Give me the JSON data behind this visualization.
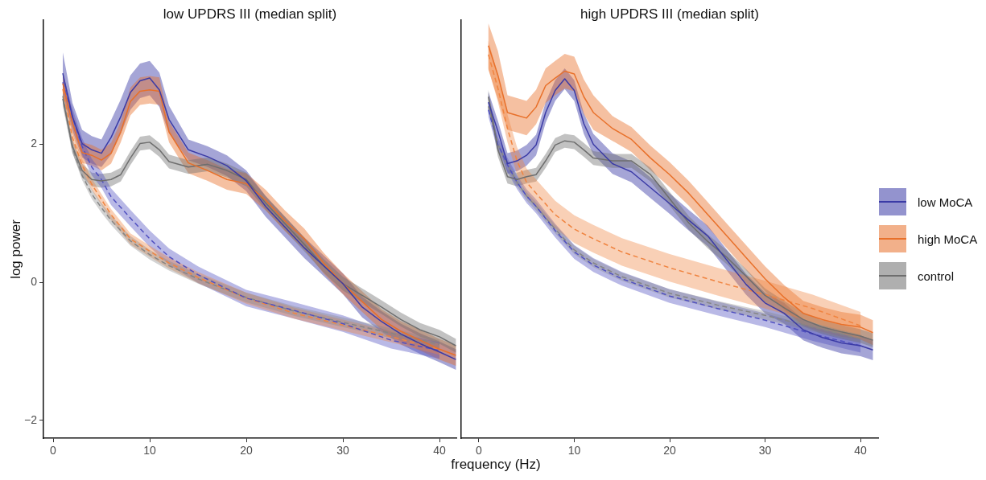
{
  "chart_data": [
    {
      "type": "line",
      "title": "low UPDRS III (median split)",
      "xlabel": "frequency (Hz)",
      "ylabel": "log power",
      "xlim": [
        -1,
        41.75
      ],
      "ylim": [
        -2.26,
        3.8
      ],
      "xticks": [
        0,
        10,
        20,
        30,
        40
      ],
      "yticks": [
        -2,
        0,
        2
      ],
      "grid": false,
      "marker": "none",
      "series": [
        {
          "color": "#3b3ba6",
          "x": [
            1,
            2,
            3,
            4,
            5,
            6,
            7,
            8,
            9,
            10,
            11,
            12,
            14,
            16,
            18,
            20,
            22,
            24,
            26,
            28,
            30,
            32,
            34,
            36,
            38,
            40,
            41.7
          ],
          "values": [
            3.03,
            2.4,
            2.01,
            1.92,
            1.87,
            2.1,
            2.4,
            2.75,
            2.92,
            2.96,
            2.79,
            2.36,
            1.92,
            1.82,
            1.69,
            1.47,
            1.1,
            0.8,
            0.5,
            0.24,
            -0.02,
            -0.36,
            -0.57,
            -0.75,
            -0.89,
            -1.01,
            -1.12
          ],
          "lower": [
            2.73,
            2.2,
            1.81,
            1.72,
            1.67,
            1.85,
            2.15,
            2.5,
            2.67,
            2.71,
            2.54,
            2.16,
            1.77,
            1.67,
            1.54,
            1.32,
            0.95,
            0.65,
            0.35,
            0.09,
            -0.17,
            -0.51,
            -0.72,
            -0.9,
            -1.04,
            -1.16,
            -1.27
          ],
          "upper": [
            3.33,
            2.6,
            2.21,
            2.12,
            2.07,
            2.35,
            2.65,
            3.0,
            3.17,
            3.21,
            3.04,
            2.56,
            2.07,
            1.97,
            1.84,
            1.62,
            1.25,
            0.95,
            0.65,
            0.39,
            0.13,
            -0.21,
            -0.42,
            -0.6,
            -0.74,
            -0.86,
            -0.97
          ],
          "line_style": "solid"
        },
        {
          "color": "#e8702a",
          "x": [
            1,
            2,
            3,
            4,
            5,
            6,
            7,
            8,
            9,
            10,
            11,
            12,
            14,
            16,
            18,
            20,
            22,
            24,
            26,
            28,
            30,
            32,
            34,
            36,
            38,
            40,
            41.7
          ],
          "values": [
            2.88,
            2.31,
            1.88,
            1.84,
            1.77,
            1.87,
            2.18,
            2.62,
            2.77,
            2.79,
            2.77,
            2.18,
            1.73,
            1.62,
            1.49,
            1.43,
            1.19,
            0.89,
            0.63,
            0.28,
            -0.02,
            -0.28,
            -0.54,
            -0.71,
            -0.84,
            -0.97,
            -1.06
          ],
          "lower": [
            2.73,
            2.16,
            1.73,
            1.69,
            1.62,
            1.72,
            2.03,
            2.42,
            2.57,
            2.59,
            2.57,
            2.03,
            1.58,
            1.47,
            1.34,
            1.28,
            1.04,
            0.74,
            0.48,
            0.13,
            -0.17,
            -0.43,
            -0.69,
            -0.86,
            -0.99,
            -1.12,
            -1.21
          ],
          "upper": [
            3.03,
            2.46,
            2.03,
            1.99,
            1.92,
            2.02,
            2.33,
            2.82,
            2.97,
            2.99,
            2.97,
            2.33,
            1.88,
            1.77,
            1.64,
            1.58,
            1.34,
            1.04,
            0.78,
            0.43,
            0.13,
            -0.13,
            -0.39,
            -0.56,
            -0.69,
            -0.82,
            -0.91
          ],
          "line_style": "solid"
        },
        {
          "color": "#6e6e6e",
          "x": [
            1,
            2,
            3,
            4,
            5,
            6,
            7,
            8,
            9,
            10,
            11,
            12,
            14,
            16,
            18,
            20,
            22,
            24,
            26,
            28,
            30,
            32,
            34,
            36,
            38,
            40,
            41.7
          ],
          "values": [
            2.66,
            1.97,
            1.62,
            1.49,
            1.47,
            1.49,
            1.56,
            1.8,
            2.01,
            2.03,
            1.92,
            1.75,
            1.67,
            1.71,
            1.62,
            1.49,
            1.15,
            0.85,
            0.55,
            0.24,
            -0.02,
            -0.19,
            -0.36,
            -0.54,
            -0.69,
            -0.79,
            -0.92
          ],
          "lower": [
            2.56,
            1.87,
            1.52,
            1.39,
            1.37,
            1.39,
            1.46,
            1.7,
            1.91,
            1.93,
            1.82,
            1.65,
            1.57,
            1.61,
            1.52,
            1.39,
            1.05,
            0.75,
            0.45,
            0.14,
            -0.12,
            -0.29,
            -0.46,
            -0.64,
            -0.79,
            -0.89,
            -1.02
          ],
          "upper": [
            2.76,
            2.07,
            1.72,
            1.59,
            1.57,
            1.59,
            1.66,
            1.9,
            2.11,
            2.13,
            2.02,
            1.85,
            1.77,
            1.81,
            1.72,
            1.59,
            1.25,
            0.95,
            0.65,
            0.34,
            0.08,
            -0.09,
            -0.26,
            -0.44,
            -0.59,
            -0.69,
            -0.82
          ],
          "line_style": "solid"
        },
        {
          "color": "#5050c0",
          "x": [
            1,
            2,
            3,
            4,
            5,
            6,
            8,
            10,
            12,
            15,
            20,
            25,
            30,
            35,
            40
          ],
          "values": [
            2.9,
            2.4,
            1.97,
            1.67,
            1.49,
            1.24,
            0.93,
            0.63,
            0.37,
            0.11,
            -0.23,
            -0.41,
            -0.6,
            -0.84,
            -0.99
          ],
          "lower": [
            2.78,
            2.28,
            1.85,
            1.55,
            1.37,
            1.12,
            0.81,
            0.51,
            0.25,
            -0.01,
            -0.35,
            -0.53,
            -0.72,
            -0.96,
            -1.11
          ],
          "upper": [
            3.02,
            2.52,
            2.09,
            1.79,
            1.61,
            1.36,
            1.05,
            0.75,
            0.49,
            0.23,
            -0.11,
            -0.29,
            -0.48,
            -0.72,
            -0.87
          ],
          "line_style": "dashed"
        },
        {
          "color": "#f08440",
          "x": [
            1,
            2,
            3,
            4,
            5,
            6,
            8,
            10,
            12,
            15,
            20,
            25,
            30,
            35,
            40
          ],
          "values": [
            2.8,
            2.1,
            1.7,
            1.42,
            1.2,
            0.98,
            0.63,
            0.45,
            0.28,
            0.07,
            -0.23,
            -0.45,
            -0.62,
            -0.79,
            -0.97
          ],
          "lower": [
            2.72,
            2.02,
            1.62,
            1.34,
            1.12,
            0.9,
            0.55,
            0.37,
            0.2,
            -0.01,
            -0.31,
            -0.53,
            -0.7,
            -0.87,
            -1.05
          ],
          "upper": [
            2.88,
            2.18,
            1.78,
            1.5,
            1.28,
            1.06,
            0.71,
            0.53,
            0.36,
            0.15,
            -0.15,
            -0.37,
            -0.54,
            -0.71,
            -0.89
          ],
          "line_style": "dashed"
        },
        {
          "color": "#858585",
          "x": [
            1,
            2,
            3,
            4,
            5,
            6,
            8,
            10,
            12,
            15,
            20,
            25,
            30,
            35,
            40
          ],
          "values": [
            2.7,
            1.95,
            1.55,
            1.28,
            1.08,
            0.9,
            0.6,
            0.4,
            0.24,
            0.05,
            -0.22,
            -0.42,
            -0.58,
            -0.74,
            -0.9
          ],
          "lower": [
            2.63,
            1.88,
            1.48,
            1.21,
            1.01,
            0.83,
            0.53,
            0.33,
            0.17,
            -0.02,
            -0.29,
            -0.49,
            -0.65,
            -0.81,
            -0.97
          ],
          "upper": [
            2.77,
            2.02,
            1.62,
            1.35,
            1.15,
            0.97,
            0.67,
            0.47,
            0.31,
            0.12,
            -0.15,
            -0.35,
            -0.51,
            -0.67,
            -0.83
          ],
          "line_style": "dashed"
        }
      ]
    },
    {
      "type": "line",
      "title": "high UPDRS III (median split)",
      "xlim": [
        -1.85,
        41.85
      ],
      "ylim": [
        -2.26,
        3.8
      ],
      "xticks": [
        0,
        10,
        20,
        30,
        40
      ],
      "yticks": [
        -2,
        0,
        2
      ],
      "tick_labels": "x",
      "grid": false,
      "marker": "none",
      "legend": "right",
      "series": [
        {
          "name": "low MoCA",
          "color": "#3b3ba6",
          "x": [
            1,
            2,
            3,
            4,
            5,
            6,
            7,
            8,
            9,
            10,
            11,
            12,
            14,
            16,
            18,
            20,
            22,
            24,
            26,
            28,
            30,
            32,
            34,
            36,
            38,
            40,
            41.3
          ],
          "values": [
            2.61,
            2.19,
            1.72,
            1.76,
            1.84,
            1.99,
            2.46,
            2.78,
            2.95,
            2.78,
            2.3,
            2.0,
            1.72,
            1.6,
            1.37,
            1.14,
            0.9,
            0.67,
            0.32,
            -0.03,
            -0.3,
            -0.45,
            -0.69,
            -0.8,
            -0.88,
            -0.92,
            -0.98
          ],
          "lower": [
            2.46,
            2.04,
            1.57,
            1.61,
            1.69,
            1.84,
            2.31,
            2.63,
            2.8,
            2.63,
            2.15,
            1.85,
            1.57,
            1.45,
            1.22,
            0.99,
            0.75,
            0.52,
            0.17,
            -0.18,
            -0.45,
            -0.6,
            -0.84,
            -0.95,
            -1.03,
            -1.07,
            -1.13
          ],
          "upper": [
            2.76,
            2.34,
            1.87,
            1.91,
            1.99,
            2.14,
            2.61,
            2.93,
            3.1,
            2.93,
            2.45,
            2.15,
            1.87,
            1.75,
            1.52,
            1.29,
            1.05,
            0.82,
            0.47,
            0.12,
            -0.15,
            -0.3,
            -0.54,
            -0.65,
            -0.73,
            -0.77,
            -0.83
          ],
          "line_style": "solid"
        },
        {
          "name": "high MoCA",
          "color": "#e8702a",
          "x": [
            1,
            2,
            3,
            4,
            5,
            6,
            7,
            8,
            9,
            10,
            11,
            12,
            14,
            16,
            18,
            20,
            22,
            24,
            26,
            28,
            30,
            32,
            34,
            36,
            38,
            40,
            41.3
          ],
          "values": [
            3.43,
            3.0,
            2.46,
            2.42,
            2.38,
            2.54,
            2.85,
            2.96,
            3.06,
            3.02,
            2.69,
            2.46,
            2.23,
            2.07,
            1.8,
            1.56,
            1.29,
            0.98,
            0.67,
            0.36,
            0.05,
            -0.22,
            -0.45,
            -0.54,
            -0.61,
            -0.65,
            -0.73
          ],
          "lower": [
            3.08,
            2.65,
            2.21,
            2.17,
            2.13,
            2.29,
            2.6,
            2.71,
            2.81,
            2.77,
            2.44,
            2.21,
            2.05,
            1.89,
            1.62,
            1.38,
            1.11,
            0.8,
            0.49,
            0.18,
            -0.13,
            -0.4,
            -0.63,
            -0.72,
            -0.79,
            -0.83,
            -0.91
          ],
          "upper": [
            3.75,
            3.35,
            2.71,
            2.67,
            2.63,
            2.79,
            3.1,
            3.21,
            3.31,
            3.27,
            2.94,
            2.71,
            2.41,
            2.25,
            1.98,
            1.74,
            1.47,
            1.16,
            0.85,
            0.54,
            0.23,
            -0.04,
            -0.27,
            -0.36,
            -0.43,
            -0.47,
            -0.55
          ],
          "line_style": "solid"
        },
        {
          "name": "control",
          "color": "#6e6e6e",
          "x": [
            1,
            2,
            3,
            4,
            5,
            6,
            7,
            8,
            9,
            10,
            11,
            12,
            14,
            16,
            18,
            20,
            22,
            24,
            26,
            28,
            30,
            32,
            34,
            36,
            38,
            40,
            41.3
          ],
          "values": [
            2.69,
            1.92,
            1.53,
            1.49,
            1.53,
            1.56,
            1.76,
            1.99,
            2.05,
            2.03,
            1.92,
            1.8,
            1.76,
            1.76,
            1.56,
            1.21,
            0.86,
            0.59,
            0.36,
            0.09,
            -0.19,
            -0.37,
            -0.54,
            -0.65,
            -0.72,
            -0.78,
            -0.84
          ],
          "lower": [
            2.59,
            1.82,
            1.43,
            1.39,
            1.43,
            1.46,
            1.66,
            1.89,
            1.95,
            1.93,
            1.82,
            1.7,
            1.66,
            1.66,
            1.46,
            1.11,
            0.76,
            0.49,
            0.26,
            -0.01,
            -0.29,
            -0.47,
            -0.64,
            -0.75,
            -0.82,
            -0.88,
            -0.94
          ],
          "upper": [
            2.79,
            2.02,
            1.63,
            1.59,
            1.63,
            1.66,
            1.86,
            2.09,
            2.15,
            2.13,
            2.02,
            1.9,
            1.86,
            1.86,
            1.66,
            1.31,
            0.96,
            0.69,
            0.46,
            0.19,
            -0.09,
            -0.27,
            -0.44,
            -0.55,
            -0.62,
            -0.68,
            -0.74
          ],
          "line_style": "solid"
        },
        {
          "color": "#5050c0",
          "x": [
            1,
            2,
            3,
            4,
            5,
            6,
            8,
            10,
            12,
            15,
            20,
            25,
            30,
            35,
            40
          ],
          "values": [
            2.5,
            2.0,
            1.7,
            1.45,
            1.25,
            1.1,
            0.75,
            0.44,
            0.25,
            0.05,
            -0.2,
            -0.38,
            -0.55,
            -0.75,
            -0.92
          ],
          "lower": [
            2.4,
            1.9,
            1.6,
            1.35,
            1.15,
            1.0,
            0.65,
            0.34,
            0.15,
            -0.05,
            -0.3,
            -0.48,
            -0.65,
            -0.85,
            -1.02
          ],
          "upper": [
            2.6,
            2.1,
            1.8,
            1.55,
            1.35,
            1.2,
            0.85,
            0.54,
            0.35,
            0.15,
            -0.1,
            -0.28,
            -0.45,
            -0.65,
            -0.82
          ],
          "line_style": "dashed"
        },
        {
          "color": "#f08440",
          "x": [
            1,
            2,
            3,
            4,
            5,
            6,
            8,
            10,
            12,
            15,
            20,
            25,
            30,
            35,
            40
          ],
          "values": [
            3.3,
            2.81,
            2.23,
            1.76,
            1.45,
            1.29,
            0.98,
            0.77,
            0.63,
            0.44,
            0.21,
            0.01,
            -0.18,
            -0.38,
            -0.63
          ],
          "lower": [
            3.1,
            2.61,
            2.03,
            1.56,
            1.25,
            1.09,
            0.78,
            0.57,
            0.43,
            0.24,
            0.01,
            -0.19,
            -0.38,
            -0.58,
            -0.83
          ],
          "upper": [
            3.5,
            3.01,
            2.43,
            1.96,
            1.65,
            1.49,
            1.18,
            0.97,
            0.83,
            0.64,
            0.41,
            0.21,
            0.02,
            -0.18,
            -0.43
          ],
          "line_style": "dashed"
        },
        {
          "color": "#858585",
          "x": [
            1,
            2,
            3,
            4,
            5,
            6,
            8,
            10,
            12,
            15,
            20,
            25,
            30,
            35,
            40
          ],
          "values": [
            2.55,
            2.0,
            1.7,
            1.45,
            1.25,
            1.1,
            0.77,
            0.47,
            0.28,
            0.08,
            -0.16,
            -0.33,
            -0.48,
            -0.65,
            -0.82
          ],
          "lower": [
            2.49,
            1.94,
            1.64,
            1.39,
            1.19,
            1.04,
            0.71,
            0.41,
            0.22,
            0.02,
            -0.22,
            -0.39,
            -0.54,
            -0.71,
            -0.88
          ],
          "upper": [
            2.61,
            2.06,
            1.76,
            1.51,
            1.31,
            1.16,
            0.83,
            0.53,
            0.34,
            0.14,
            -0.1,
            -0.27,
            -0.42,
            -0.59,
            -0.76
          ],
          "line_style": "dashed"
        }
      ]
    }
  ]
}
